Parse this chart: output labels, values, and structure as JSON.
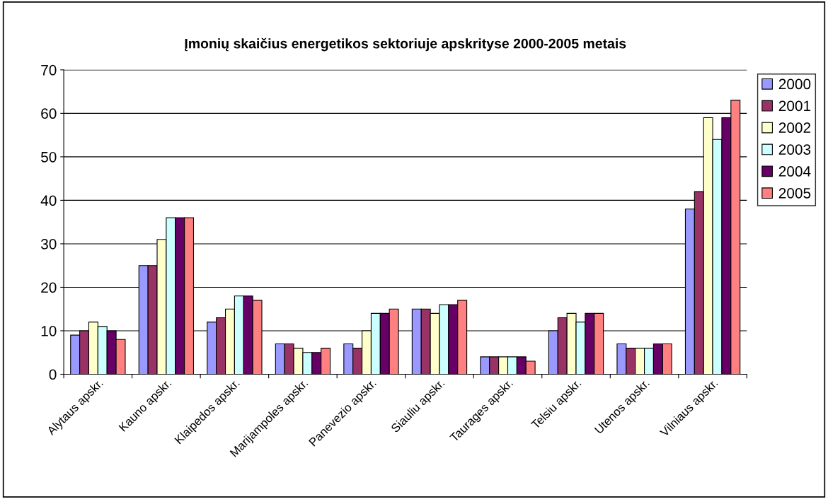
{
  "chart_data": {
    "type": "bar",
    "title": "Įmonių skaičius energetikos sektoriuje apskrityse 2000-2005 metais",
    "categories": [
      "Alytaus apskr.",
      "Kauno apskr.",
      "Klaipedos apskr.",
      "Marijampoles apskr.",
      "Panevezio apskr.",
      "Siauliu apskr.",
      "Taurages apskr.",
      "Telsiu apskr.",
      "Utenos apskr.",
      "Vilniaus apskr."
    ],
    "series": [
      {
        "name": "2000",
        "color": "#9999ff",
        "values": [
          9,
          25,
          12,
          7,
          7,
          15,
          4,
          10,
          7,
          38
        ]
      },
      {
        "name": "2001",
        "color": "#993366",
        "values": [
          10,
          25,
          13,
          7,
          6,
          15,
          4,
          13,
          6,
          42
        ]
      },
      {
        "name": "2002",
        "color": "#ffffcc",
        "values": [
          12,
          31,
          15,
          6,
          10,
          14,
          4,
          14,
          6,
          59
        ]
      },
      {
        "name": "2003",
        "color": "#ccffff",
        "values": [
          11,
          36,
          18,
          5,
          14,
          16,
          4,
          12,
          6,
          54
        ]
      },
      {
        "name": "2004",
        "color": "#660066",
        "values": [
          10,
          36,
          18,
          5,
          14,
          16,
          4,
          14,
          7,
          59
        ]
      },
      {
        "name": "2005",
        "color": "#ff8080",
        "values": [
          8,
          36,
          17,
          6,
          15,
          17,
          3,
          14,
          7,
          63
        ]
      }
    ],
    "ylim": [
      0,
      70
    ],
    "yticks": [
      0,
      10,
      20,
      30,
      40,
      50,
      60,
      70
    ],
    "grid": "y",
    "legend": "right"
  }
}
